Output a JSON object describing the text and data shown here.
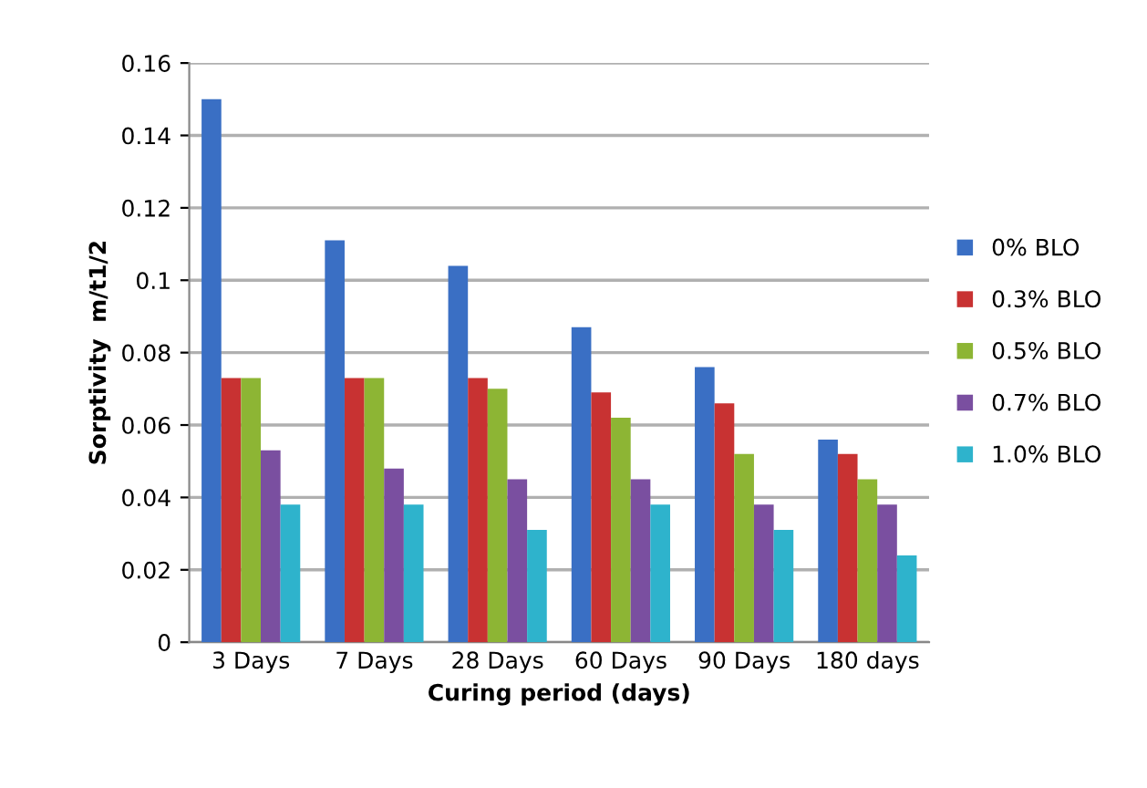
{
  "chart_data": {
    "type": "bar",
    "xlabel": "Curing period (days)",
    "ylabel": "Sorptivity  m/t1/2",
    "categories": [
      "3 Days",
      "7 Days",
      "28 Days",
      "60 Days",
      "90 Days",
      "180 days"
    ],
    "series": [
      {
        "name": "0% BLO",
        "color": "#3a6fc4",
        "values": [
          0.15,
          0.111,
          0.104,
          0.087,
          0.076,
          0.056
        ]
      },
      {
        "name": "0.3% BLO",
        "color": "#c83232",
        "values": [
          0.073,
          0.073,
          0.073,
          0.069,
          0.066,
          0.052
        ]
      },
      {
        "name": "0.5% BLO",
        "color": "#8db534",
        "values": [
          0.073,
          0.073,
          0.07,
          0.062,
          0.052,
          0.045
        ]
      },
      {
        "name": "0.7% BLO",
        "color": "#7a4fa0",
        "values": [
          0.053,
          0.048,
          0.045,
          0.045,
          0.038,
          0.038
        ]
      },
      {
        "name": "1.0% BLO",
        "color": "#2eb3cc",
        "values": [
          0.038,
          0.038,
          0.031,
          0.038,
          0.031,
          0.024
        ]
      }
    ],
    "ylim": [
      0,
      0.16
    ],
    "yticks": [
      0,
      0.02,
      0.04,
      0.06,
      0.08,
      0.1,
      0.12,
      0.14,
      0.16
    ],
    "grid": "y",
    "legend": "right"
  }
}
